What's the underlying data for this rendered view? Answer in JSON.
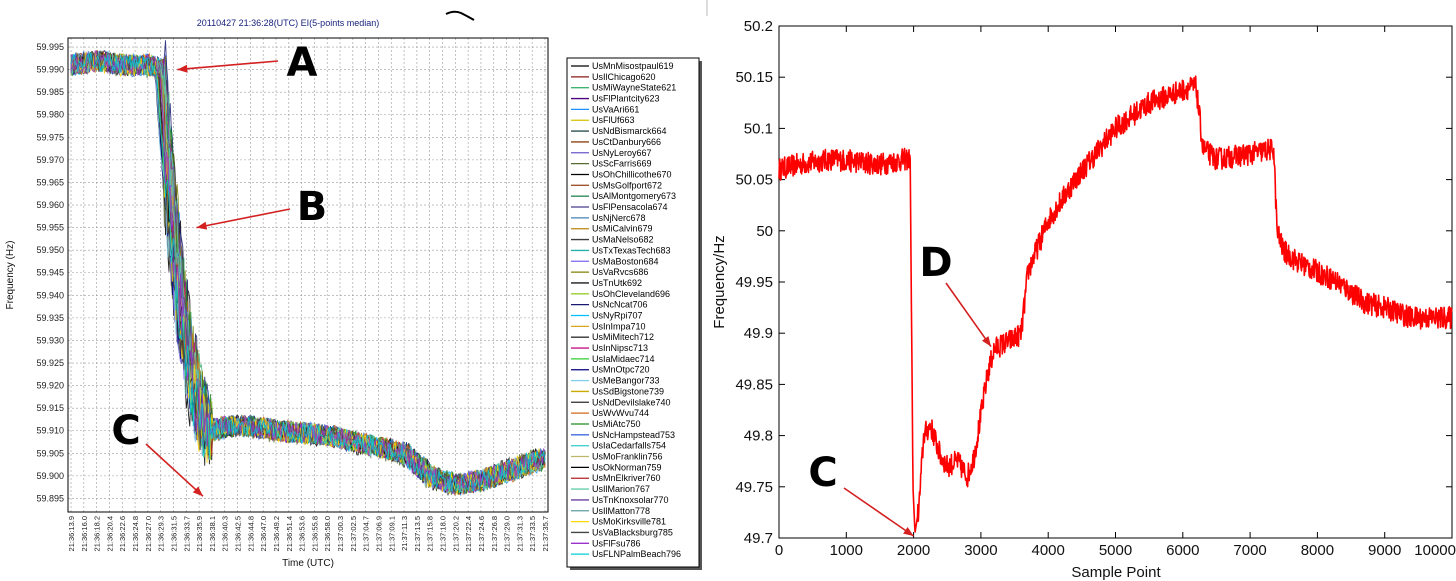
{
  "chart_data": [
    {
      "type": "line",
      "title": "20110427 21:36:28(UTC) EI(5-points median)",
      "xlabel": "Time (UTC)",
      "ylabel": "Frequency (Hz)",
      "ylim": [
        59.892,
        59.997
      ],
      "y_ticks": [
        59.995,
        59.99,
        59.985,
        59.98,
        59.975,
        59.97,
        59.965,
        59.96,
        59.955,
        59.95,
        59.945,
        59.94,
        59.935,
        59.93,
        59.925,
        59.92,
        59.915,
        59.91,
        59.905,
        59.9,
        59.895
      ],
      "x_ticks": [
        "21:36:13.9",
        "21:36:16.0",
        "21:36:18.2",
        "21:36:20.4",
        "21:36:22.6",
        "21:36:24.8",
        "21:36:27.0",
        "21:36:29.3",
        "21:36:31.5",
        "21:36:33.7",
        "21:36:35.9",
        "21:36:38.1",
        "21:36:40.3",
        "21:36:42.5",
        "21:36:44.8",
        "21:36:47.0",
        "21:36:49.2",
        "21:36:51.4",
        "21:36:53.6",
        "21:36:55.8",
        "21:36:58.0",
        "21:37:00.3",
        "21:37:02.5",
        "21:37:04.7",
        "21:37:06.9",
        "21:37:09.1",
        "21:37:11.3",
        "21:37:13.5",
        "21:37:15.8",
        "21:37:18.0",
        "21:37:20.2",
        "21:37:22.4",
        "21:37:24.6",
        "21:37:26.8",
        "21:37:29.0",
        "21:37:31.3",
        "21:37:33.5",
        "21:37:35.7"
      ],
      "grid": true,
      "legend_position": "right",
      "series_profile": {
        "x": [
          0,
          2,
          4,
          6,
          7,
          7.5,
          8,
          8.5,
          9,
          9.5,
          10,
          10.5,
          11,
          12,
          14,
          16,
          20,
          26,
          28,
          30,
          32,
          34,
          37
        ],
        "y": [
          59.991,
          59.992,
          59.991,
          59.991,
          59.99,
          59.97,
          59.955,
          59.94,
          59.93,
          59.922,
          59.915,
          59.911,
          59.91,
          59.911,
          59.911,
          59.91,
          59.909,
          59.905,
          59.9,
          59.898,
          59.899,
          59.901,
          59.904
        ]
      },
      "series": [
        {
          "name": "UsMnMisostpaul619",
          "color": "#000000"
        },
        {
          "name": "UsIlChicago620",
          "color": "#8b1a1a"
        },
        {
          "name": "UsMiWayneState621",
          "color": "#3cb371"
        },
        {
          "name": "UsFlPlantcity623",
          "color": "#4b0082"
        },
        {
          "name": "UsVaAri661",
          "color": "#1e90ff"
        },
        {
          "name": "UsFlUf663",
          "color": "#d4c000"
        },
        {
          "name": "UsNdBismarck664",
          "color": "#2f4f4f"
        },
        {
          "name": "UsCtDanbury666",
          "color": "#8b4513"
        },
        {
          "name": "UsNyLeroy667",
          "color": "#6a5acd"
        },
        {
          "name": "UsScFarris669",
          "color": "#556b2f"
        },
        {
          "name": "UsOhChillicothe670",
          "color": "#000000"
        },
        {
          "name": "UsMsGolfport672",
          "color": "#a0522d"
        },
        {
          "name": "UsAlMontgomery673",
          "color": "#2e8b57"
        },
        {
          "name": "UsFlPensacola674",
          "color": "#483d8b"
        },
        {
          "name": "UsNjNerc678",
          "color": "#4682b4"
        },
        {
          "name": "UsMiCalvin679",
          "color": "#b8860b"
        },
        {
          "name": "UsMaNelso682",
          "color": "#3c3c3c"
        },
        {
          "name": "UsTxTexasTech683",
          "color": "#20b2aa"
        },
        {
          "name": "UsMaBoston684",
          "color": "#7b68ee"
        },
        {
          "name": "UsVaRvcs686",
          "color": "#808000"
        },
        {
          "name": "UsTnUtk692",
          "color": "#1a1a1a"
        },
        {
          "name": "UsOhCleveland696",
          "color": "#9acd32"
        },
        {
          "name": "UsNcNcat706",
          "color": "#191970"
        },
        {
          "name": "UsNyRpi707",
          "color": "#00bfff"
        },
        {
          "name": "UsInImpa710",
          "color": "#daa520"
        },
        {
          "name": "UsMiMitech712",
          "color": "#333333"
        },
        {
          "name": "UsInNipsc713",
          "color": "#c71585"
        },
        {
          "name": "UsIaMidaec714",
          "color": "#32cd32"
        },
        {
          "name": "UsMnOtpc720",
          "color": "#000080"
        },
        {
          "name": "UsMeBangor733",
          "color": "#87ceeb"
        },
        {
          "name": "UsSdBigstone739",
          "color": "#cdaa00"
        },
        {
          "name": "UsNdDevilslake740",
          "color": "#2b2b2b"
        },
        {
          "name": "UsWvWvu744",
          "color": "#d2691e"
        },
        {
          "name": "UsMiAtc750",
          "color": "#228b22"
        },
        {
          "name": "UsNcHampstead753",
          "color": "#4169e1"
        },
        {
          "name": "UsIaCedarfalls754",
          "color": "#48d1cc"
        },
        {
          "name": "UsMoFranklin756",
          "color": "#bdb76b"
        },
        {
          "name": "UsOkNorman759",
          "color": "#000000"
        },
        {
          "name": "UsMnElkriver760",
          "color": "#b22222"
        },
        {
          "name": "UsIlMarion767",
          "color": "#66cdaa"
        },
        {
          "name": "UsTnKnoxsolar770",
          "color": "#6b3fa0"
        },
        {
          "name": "UsIlMatton778",
          "color": "#5f9ea0"
        },
        {
          "name": "UsMoKirksville781",
          "color": "#ffd700"
        },
        {
          "name": "UsVaBlacksburg785",
          "color": "#444444"
        },
        {
          "name": "UsFlFsu786",
          "color": "#9932cc"
        },
        {
          "name": "UsFLNPalmBeach796",
          "color": "#00ced1"
        }
      ],
      "annotations": [
        {
          "label": "A",
          "x": 8.3,
          "y": 59.99
        },
        {
          "label": "B",
          "x": 9.8,
          "y": 59.955
        },
        {
          "label": "C",
          "x": 10.3,
          "y": 59.8955
        }
      ]
    },
    {
      "type": "line",
      "xlabel": "Sample Point",
      "ylabel": "Frequency/Hz",
      "xlim": [
        0,
        10000
      ],
      "ylim": [
        49.7,
        50.2
      ],
      "x_ticks": [
        0,
        1000,
        2000,
        3000,
        4000,
        5000,
        6000,
        7000,
        8000,
        9000,
        10000
      ],
      "y_ticks": [
        "50.2",
        "50.15",
        "50.1",
        "50.05",
        "50",
        "49.95",
        "49.9",
        "49.85",
        "49.8",
        "49.75",
        "49.7"
      ],
      "grid": false,
      "color": "#ff0000",
      "x": [
        0,
        300,
        800,
        1500,
        1900,
        1950,
        1990,
        2020,
        2080,
        2150,
        2250,
        2400,
        2500,
        2650,
        2800,
        2900,
        3000,
        3100,
        3200,
        3350,
        3500,
        3600,
        3700,
        4000,
        4400,
        5000,
        5500,
        5900,
        6100,
        6200,
        6300,
        6500,
        7000,
        7350,
        7400,
        7500,
        7700,
        8000,
        8300,
        8700,
        9000,
        9400,
        10000
      ],
      "y": [
        50.06,
        50.065,
        50.07,
        50.065,
        50.07,
        50.07,
        49.75,
        49.705,
        49.73,
        49.8,
        49.81,
        49.78,
        49.77,
        49.775,
        49.76,
        49.78,
        49.82,
        49.86,
        49.885,
        49.89,
        49.895,
        49.9,
        49.96,
        50.01,
        50.05,
        50.1,
        50.125,
        50.135,
        50.14,
        50.14,
        50.08,
        50.07,
        50.075,
        50.08,
        50.0,
        49.98,
        49.97,
        49.96,
        49.95,
        49.93,
        49.925,
        49.915,
        49.915
      ],
      "annotations": [
        {
          "label": "D",
          "x": 3150,
          "y": 49.885
        },
        {
          "label": "C",
          "x": 2000,
          "y": 49.7
        }
      ]
    }
  ]
}
